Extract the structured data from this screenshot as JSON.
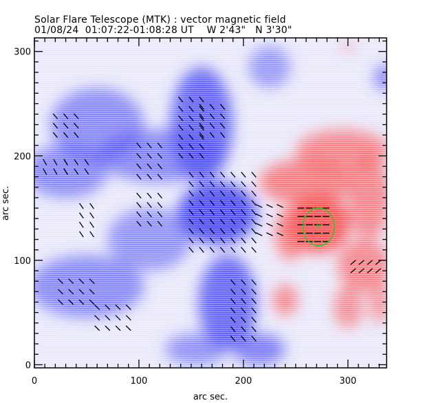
{
  "header": {
    "title": "Solar Flare Telescope (MTK) : vector magnetic field",
    "date": "01/08/24",
    "time_range": "01:07:22-01:08:28 UT",
    "position": "W 2'43\"   N 3'30\""
  },
  "chart_data": {
    "type": "heatmap",
    "title": "Solar Flare Telescope (MTK) : vector magnetic field",
    "xlabel": "arc sec.",
    "ylabel": "arc sec.",
    "xlim": [
      0,
      337
    ],
    "ylim": [
      -3,
      313
    ],
    "x_ticks": [
      "0",
      "100",
      "200",
      "300"
    ],
    "x_tick_values": [
      0,
      100,
      200,
      300
    ],
    "y_ticks": [
      "0",
      "100",
      "200",
      "300"
    ],
    "y_tick_values": [
      0,
      100,
      200,
      300
    ],
    "colors": {
      "negative_polarity": "#3b3bff",
      "positive_polarity": "#ff3b3b",
      "contour": "#22cc22",
      "vector": "#000000"
    },
    "polarity_regions": [
      {
        "polarity": "negative",
        "cx": 175,
        "cy": 145,
        "rx": 38,
        "ry": 30,
        "strength": 1.0
      },
      {
        "polarity": "negative",
        "cx": 160,
        "cy": 230,
        "rx": 30,
        "ry": 55,
        "strength": 0.75
      },
      {
        "polarity": "negative",
        "cx": 185,
        "cy": 60,
        "rx": 28,
        "ry": 45,
        "strength": 0.75
      },
      {
        "polarity": "negative",
        "cx": 120,
        "cy": 200,
        "rx": 60,
        "ry": 25,
        "strength": 0.45
      },
      {
        "polarity": "negative",
        "cx": 60,
        "cy": 230,
        "rx": 45,
        "ry": 35,
        "strength": 0.4
      },
      {
        "polarity": "negative",
        "cx": 30,
        "cy": 185,
        "rx": 40,
        "ry": 25,
        "strength": 0.4
      },
      {
        "polarity": "negative",
        "cx": 50,
        "cy": 75,
        "rx": 55,
        "ry": 30,
        "strength": 0.4
      },
      {
        "polarity": "negative",
        "cx": 110,
        "cy": 120,
        "rx": 40,
        "ry": 30,
        "strength": 0.3
      },
      {
        "polarity": "negative",
        "cx": 215,
        "cy": 15,
        "rx": 25,
        "ry": 15,
        "strength": 0.55
      },
      {
        "polarity": "negative",
        "cx": 155,
        "cy": 15,
        "rx": 30,
        "ry": 15,
        "strength": 0.35
      },
      {
        "polarity": "negative",
        "cx": 335,
        "cy": 275,
        "rx": 10,
        "ry": 12,
        "strength": 0.5
      },
      {
        "polarity": "negative",
        "cx": 225,
        "cy": 285,
        "rx": 20,
        "ry": 20,
        "strength": 0.25
      },
      {
        "polarity": "positive",
        "cx": 272,
        "cy": 135,
        "rx": 30,
        "ry": 28,
        "strength": 1.0
      },
      {
        "polarity": "positive",
        "cx": 260,
        "cy": 175,
        "rx": 45,
        "ry": 22,
        "strength": 0.6
      },
      {
        "polarity": "positive",
        "cx": 295,
        "cy": 205,
        "rx": 45,
        "ry": 20,
        "strength": 0.5
      },
      {
        "polarity": "positive",
        "cx": 320,
        "cy": 160,
        "rx": 20,
        "ry": 40,
        "strength": 0.5
      },
      {
        "polarity": "positive",
        "cx": 315,
        "cy": 95,
        "rx": 25,
        "ry": 25,
        "strength": 0.5
      },
      {
        "polarity": "positive",
        "cx": 245,
        "cy": 125,
        "rx": 15,
        "ry": 25,
        "strength": 0.55
      },
      {
        "polarity": "positive",
        "cx": 240,
        "cy": 62,
        "rx": 12,
        "ry": 15,
        "strength": 0.5
      },
      {
        "polarity": "positive",
        "cx": 300,
        "cy": 55,
        "rx": 14,
        "ry": 20,
        "strength": 0.4
      },
      {
        "polarity": "positive",
        "cx": 330,
        "cy": 60,
        "rx": 10,
        "ry": 20,
        "strength": 0.35
      },
      {
        "polarity": "positive",
        "cx": 300,
        "cy": 305,
        "rx": 4,
        "ry": 6,
        "strength": 0.3
      }
    ],
    "contour": {
      "cx": 272,
      "cy": 132,
      "rx": 15,
      "ry": 18
    },
    "contour_center_marker": {
      "x": 272,
      "y": 133
    },
    "vector_groups": [
      {
        "x0": 150,
        "x1": 215,
        "dx": 10,
        "y0": 110,
        "y1": 185,
        "dy": 9,
        "angle": -50
      },
      {
        "x0": 215,
        "x1": 235,
        "dx": 10,
        "y0": 125,
        "y1": 155,
        "dy": 9,
        "angle": -25
      },
      {
        "x0": 140,
        "x1": 160,
        "dx": 10,
        "y0": 200,
        "y1": 260,
        "dy": 9,
        "angle": -50
      },
      {
        "x0": 160,
        "x1": 185,
        "dx": 10,
        "y0": 220,
        "y1": 250,
        "dy": 9,
        "angle": -50
      },
      {
        "x0": 100,
        "x1": 125,
        "dx": 10,
        "y0": 135,
        "y1": 165,
        "dy": 9,
        "angle": -50
      },
      {
        "x0": 45,
        "x1": 60,
        "dx": 10,
        "y0": 125,
        "y1": 155,
        "dy": 9,
        "angle": -55
      },
      {
        "x0": 10,
        "x1": 30,
        "dx": 10,
        "y0": 185,
        "y1": 200,
        "dy": 9,
        "angle": -60
      },
      {
        "x0": 30,
        "x1": 55,
        "dx": 10,
        "y0": 185,
        "y1": 195,
        "dy": 9,
        "angle": -55
      },
      {
        "x0": 20,
        "x1": 40,
        "dx": 10,
        "y0": 220,
        "y1": 245,
        "dy": 9,
        "angle": -50
      },
      {
        "x0": 100,
        "x1": 120,
        "dx": 10,
        "y0": 180,
        "y1": 210,
        "dy": 10,
        "angle": -50
      },
      {
        "x0": 25,
        "x1": 60,
        "dx": 10,
        "y0": 60,
        "y1": 80,
        "dy": 10,
        "angle": -45
      },
      {
        "x0": 60,
        "x1": 90,
        "dx": 10,
        "y0": 35,
        "y1": 55,
        "dy": 10,
        "angle": -45
      },
      {
        "x0": 190,
        "x1": 210,
        "dx": 10,
        "y0": 25,
        "y1": 80,
        "dy": 9,
        "angle": -50
      },
      {
        "x0": 305,
        "x1": 330,
        "dx": 8,
        "y0": 90,
        "y1": 105,
        "dy": 8,
        "angle": 40
      },
      {
        "x0": 255,
        "x1": 285,
        "dx": 8,
        "y0": 118,
        "y1": 150,
        "dy": 8,
        "angle": 0
      }
    ],
    "annotations": []
  }
}
